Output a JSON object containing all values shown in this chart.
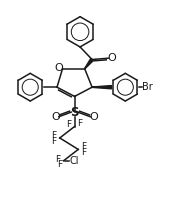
{
  "bg_color": "#ffffff",
  "line_color": "#1a1a1a",
  "line_width": 1.1,
  "font_size": 6.5,
  "figsize": [
    1.86,
    2.15
  ],
  "dpi": 100,
  "xlim": [
    0,
    10
  ],
  "ylim": [
    0,
    11.5
  ]
}
